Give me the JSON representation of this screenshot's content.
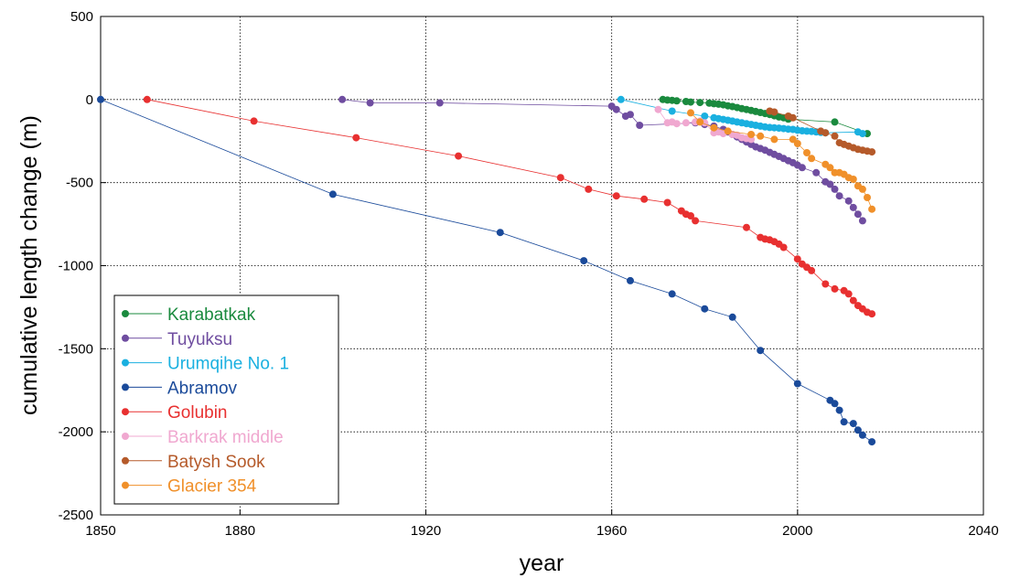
{
  "chart_data": {
    "type": "line",
    "title": "",
    "xlabel": "year",
    "ylabel": "cumulative length change (m)",
    "xlim": [
      1850,
      2040
    ],
    "ylim": [
      -2500,
      500
    ],
    "xticks": [
      1850,
      1880,
      1920,
      1960,
      2000,
      2040
    ],
    "yticks": [
      500,
      0,
      -500,
      -1000,
      -1500,
      -2000,
      -2500
    ],
    "grid": "dotted at major ticks",
    "legend_position": "bottom-left",
    "series": [
      {
        "name": "Karabatkak",
        "color": "#1a8a3e",
        "points": [
          [
            1971,
            0
          ],
          [
            1972,
            -3
          ],
          [
            1973,
            -5
          ],
          [
            1974,
            -8
          ],
          [
            1976,
            -12
          ],
          [
            1977,
            -15
          ],
          [
            1979,
            -18
          ],
          [
            1981,
            -22
          ],
          [
            1982,
            -25
          ],
          [
            1983,
            -28
          ],
          [
            1984,
            -32
          ],
          [
            1985,
            -38
          ],
          [
            1986,
            -42
          ],
          [
            1987,
            -48
          ],
          [
            1988,
            -55
          ],
          [
            1989,
            -60
          ],
          [
            1990,
            -66
          ],
          [
            1991,
            -72
          ],
          [
            1992,
            -78
          ],
          [
            1993,
            -84
          ],
          [
            1994,
            -90
          ],
          [
            1995,
            -98
          ],
          [
            1996,
            -105
          ],
          [
            1997,
            -110
          ],
          [
            1998,
            -118
          ],
          [
            2008,
            -135
          ],
          [
            2015,
            -205
          ]
        ]
      },
      {
        "name": "Tuyuksu",
        "color": "#6f4da0",
        "points": [
          [
            1902,
            0
          ],
          [
            1908,
            -20
          ],
          [
            1923,
            -20
          ],
          [
            1960,
            -40
          ],
          [
            1961,
            -60
          ],
          [
            1963,
            -100
          ],
          [
            1964,
            -90
          ],
          [
            1966,
            -155
          ],
          [
            1978,
            -140
          ],
          [
            1980,
            -150
          ],
          [
            1982,
            -160
          ],
          [
            1984,
            -180
          ],
          [
            1985,
            -195
          ],
          [
            1986,
            -210
          ],
          [
            1987,
            -225
          ],
          [
            1988,
            -240
          ],
          [
            1989,
            -255
          ],
          [
            1990,
            -270
          ],
          [
            1991,
            -285
          ],
          [
            1992,
            -295
          ],
          [
            1993,
            -305
          ],
          [
            1994,
            -318
          ],
          [
            1995,
            -330
          ],
          [
            1996,
            -342
          ],
          [
            1997,
            -355
          ],
          [
            1998,
            -368
          ],
          [
            1999,
            -380
          ],
          [
            2000,
            -395
          ],
          [
            2001,
            -410
          ],
          [
            2004,
            -440
          ],
          [
            2006,
            -495
          ],
          [
            2007,
            -510
          ],
          [
            2008,
            -540
          ],
          [
            2009,
            -580
          ],
          [
            2011,
            -610
          ],
          [
            2012,
            -650
          ],
          [
            2013,
            -690
          ],
          [
            2014,
            -730
          ]
        ]
      },
      {
        "name": "Urumqihe No. 1",
        "color": "#1ab0e0",
        "points": [
          [
            1962,
            0
          ],
          [
            1973,
            -70
          ],
          [
            1980,
            -100
          ],
          [
            1982,
            -110
          ],
          [
            1983,
            -115
          ],
          [
            1984,
            -120
          ],
          [
            1985,
            -125
          ],
          [
            1986,
            -130
          ],
          [
            1987,
            -135
          ],
          [
            1988,
            -140
          ],
          [
            1989,
            -145
          ],
          [
            1990,
            -150
          ],
          [
            1991,
            -155
          ],
          [
            1992,
            -160
          ],
          [
            1993,
            -165
          ],
          [
            1994,
            -168
          ],
          [
            1995,
            -170
          ],
          [
            1996,
            -172
          ],
          [
            1997,
            -175
          ],
          [
            1998,
            -178
          ],
          [
            1999,
            -180
          ],
          [
            2000,
            -185
          ],
          [
            2001,
            -188
          ],
          [
            2002,
            -190
          ],
          [
            2003,
            -192
          ],
          [
            2004,
            -195
          ],
          [
            2005,
            -198
          ],
          [
            2006,
            -200
          ],
          [
            2013,
            -195
          ],
          [
            2014,
            -205
          ]
        ]
      },
      {
        "name": "Abramov",
        "color": "#1a4a9a",
        "points": [
          [
            1850,
            0
          ],
          [
            1900,
            -570
          ],
          [
            1936,
            -800
          ],
          [
            1954,
            -970
          ],
          [
            1964,
            -1090
          ],
          [
            1973,
            -1170
          ],
          [
            1980,
            -1260
          ],
          [
            1986,
            -1310
          ],
          [
            1992,
            -1510
          ],
          [
            2000,
            -1710
          ],
          [
            2007,
            -1810
          ],
          [
            2008,
            -1830
          ],
          [
            2009,
            -1870
          ],
          [
            2010,
            -1940
          ],
          [
            2012,
            -1950
          ],
          [
            2013,
            -1990
          ],
          [
            2014,
            -2020
          ],
          [
            2016,
            -2060
          ]
        ]
      },
      {
        "name": "Golubin",
        "color": "#e83030",
        "points": [
          [
            1860,
            0
          ],
          [
            1883,
            -130
          ],
          [
            1905,
            -230
          ],
          [
            1927,
            -340
          ],
          [
            1949,
            -470
          ],
          [
            1955,
            -540
          ],
          [
            1961,
            -580
          ],
          [
            1967,
            -600
          ],
          [
            1972,
            -620
          ],
          [
            1975,
            -670
          ],
          [
            1976,
            -690
          ],
          [
            1977,
            -700
          ],
          [
            1978,
            -730
          ],
          [
            1989,
            -770
          ],
          [
            1992,
            -830
          ],
          [
            1993,
            -840
          ],
          [
            1994,
            -845
          ],
          [
            1995,
            -855
          ],
          [
            1996,
            -870
          ],
          [
            1997,
            -890
          ],
          [
            2000,
            -960
          ],
          [
            2001,
            -990
          ],
          [
            2002,
            -1010
          ],
          [
            2003,
            -1030
          ],
          [
            2006,
            -1110
          ],
          [
            2008,
            -1140
          ],
          [
            2010,
            -1150
          ],
          [
            2011,
            -1170
          ],
          [
            2012,
            -1210
          ],
          [
            2013,
            -1240
          ],
          [
            2014,
            -1260
          ],
          [
            2015,
            -1280
          ],
          [
            2016,
            -1290
          ]
        ]
      },
      {
        "name": "Barkrak middle",
        "color": "#f0a8d0",
        "points": [
          [
            1970,
            -60
          ],
          [
            1972,
            -140
          ],
          [
            1973,
            -135
          ],
          [
            1974,
            -145
          ],
          [
            1976,
            -140
          ],
          [
            1978,
            -135
          ],
          [
            1979,
            -130
          ],
          [
            1980,
            -140
          ],
          [
            1982,
            -200
          ],
          [
            1983,
            -195
          ],
          [
            1984,
            -205
          ],
          [
            1986,
            -210
          ],
          [
            1987,
            -215
          ],
          [
            1988,
            -230
          ],
          [
            1989,
            -235
          ],
          [
            1990,
            -240
          ]
        ]
      },
      {
        "name": "Batysh Sook",
        "color": "#b55a2a",
        "points": [
          [
            1994,
            -70
          ],
          [
            1995,
            -75
          ],
          [
            1998,
            -100
          ],
          [
            1999,
            -110
          ],
          [
            2005,
            -190
          ],
          [
            2006,
            -200
          ],
          [
            2008,
            -220
          ],
          [
            2009,
            -260
          ],
          [
            2010,
            -270
          ],
          [
            2011,
            -280
          ],
          [
            2012,
            -290
          ],
          [
            2013,
            -300
          ],
          [
            2014,
            -305
          ],
          [
            2015,
            -310
          ],
          [
            2016,
            -315
          ]
        ]
      },
      {
        "name": "Glacier 354",
        "color": "#f0902a",
        "points": [
          [
            1977,
            -80
          ],
          [
            1979,
            -135
          ],
          [
            1982,
            -170
          ],
          [
            1985,
            -190
          ],
          [
            1990,
            -210
          ],
          [
            1992,
            -220
          ],
          [
            1995,
            -240
          ],
          [
            1999,
            -240
          ],
          [
            2000,
            -265
          ],
          [
            2002,
            -320
          ],
          [
            2003,
            -355
          ],
          [
            2006,
            -390
          ],
          [
            2007,
            -410
          ],
          [
            2008,
            -440
          ],
          [
            2009,
            -440
          ],
          [
            2010,
            -450
          ],
          [
            2011,
            -470
          ],
          [
            2012,
            -480
          ],
          [
            2013,
            -520
          ],
          [
            2014,
            -540
          ],
          [
            2015,
            -590
          ],
          [
            2016,
            -660
          ]
        ]
      }
    ]
  }
}
